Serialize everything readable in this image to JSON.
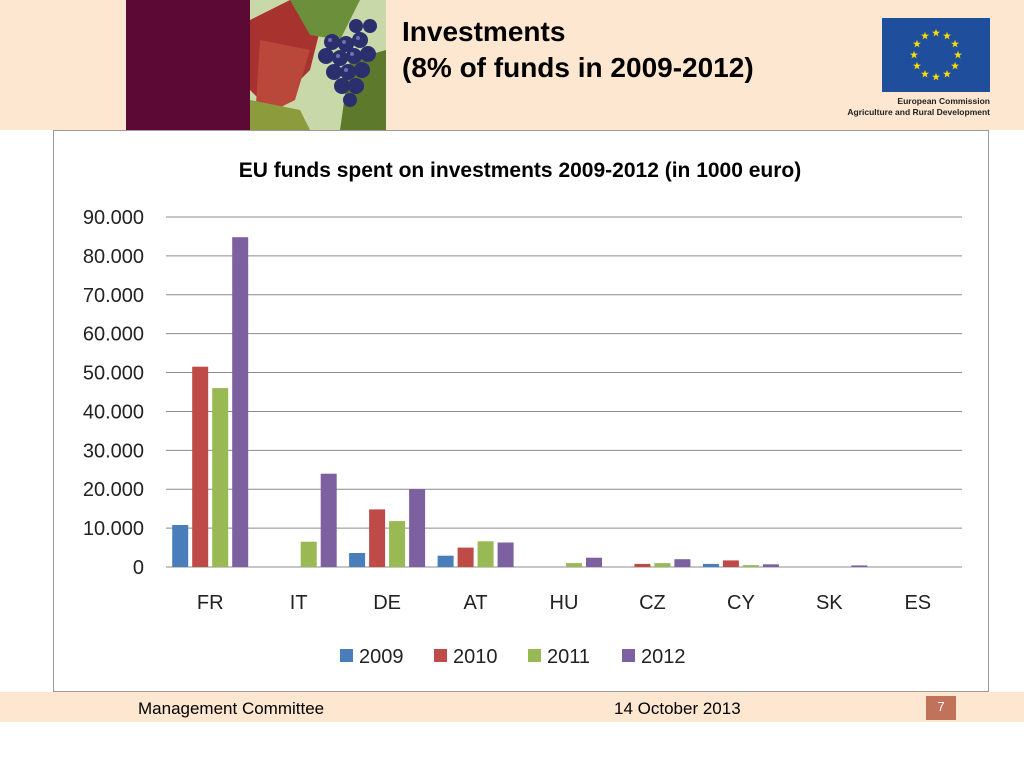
{
  "slide": {
    "title_line1": "Investments",
    "title_line2": "(8% of funds in 2009-2012)",
    "logo_line1": "European Commission",
    "logo_line2": "Agriculture and Rural Development",
    "footer_left": "Management Committee",
    "footer_date": "14 October 2013",
    "page_number": "7"
  },
  "colors": {
    "band": "#fde7d0",
    "maroon": "#5c0a35",
    "eu_blue": "#1f4e9c",
    "eu_star": "#ffdd00"
  },
  "chart_data": {
    "type": "bar",
    "title": "EU funds spent on investments 2009-2012 (in 1000 euro)",
    "categories": [
      "FR",
      "IT",
      "DE",
      "AT",
      "HU",
      "CZ",
      "CY",
      "SK",
      "ES"
    ],
    "series": [
      {
        "name": "2009",
        "color": "#4a7ebb",
        "values": [
          10800,
          0,
          3600,
          2900,
          0,
          0,
          800,
          0,
          0
        ]
      },
      {
        "name": "2010",
        "color": "#be4b48",
        "values": [
          51500,
          0,
          14800,
          5000,
          0,
          800,
          1700,
          0,
          0
        ]
      },
      {
        "name": "2011",
        "color": "#98b954",
        "values": [
          46000,
          6500,
          11800,
          6600,
          1000,
          1000,
          500,
          0,
          0
        ]
      },
      {
        "name": "2012",
        "color": "#7d60a0",
        "values": [
          84800,
          24000,
          20000,
          6300,
          2400,
          2000,
          700,
          400,
          0
        ]
      }
    ],
    "ylim": [
      0,
      90000
    ],
    "yticks": [
      0,
      10000,
      20000,
      30000,
      40000,
      50000,
      60000,
      70000,
      80000,
      90000
    ],
    "ytick_labels": [
      "0",
      "10.000",
      "20.000",
      "30.000",
      "40.000",
      "50.000",
      "60.000",
      "70.000",
      "80.000",
      "90.000"
    ],
    "xlabel": "",
    "ylabel": "",
    "grid": true,
    "legend_position": "bottom"
  }
}
